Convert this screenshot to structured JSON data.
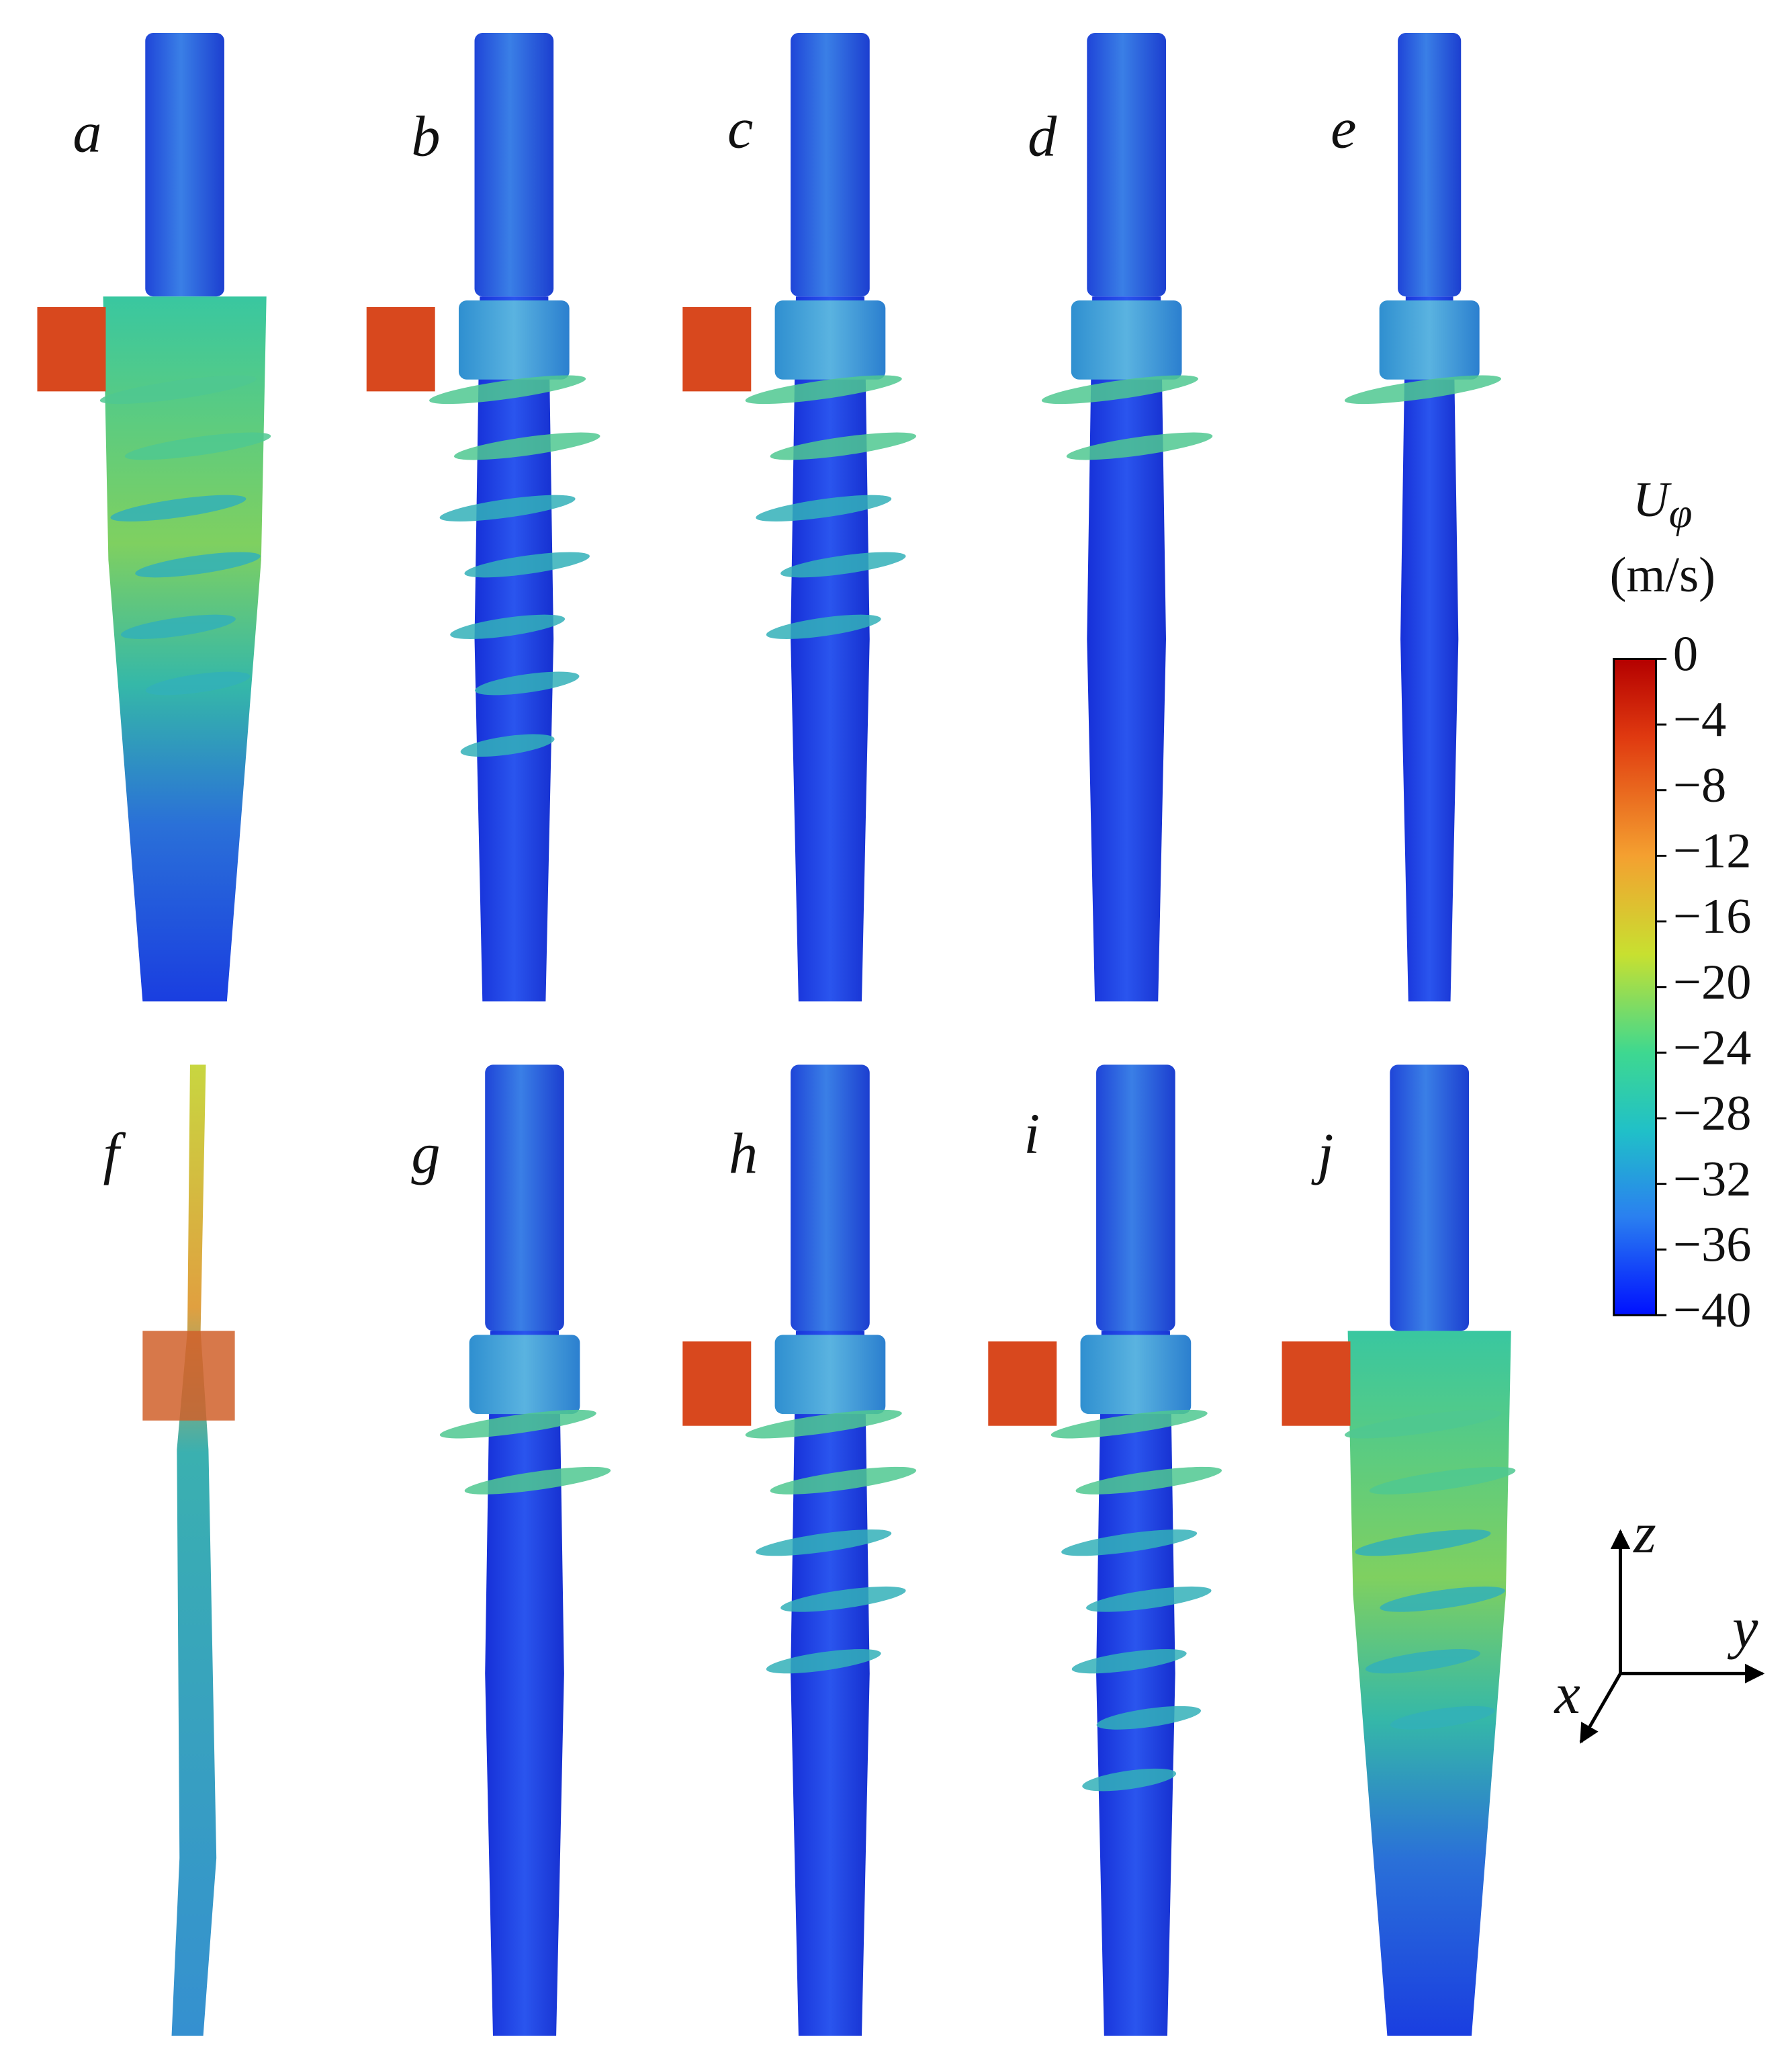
{
  "panels": [
    {
      "label": "a"
    },
    {
      "label": "b"
    },
    {
      "label": "c"
    },
    {
      "label": "d"
    },
    {
      "label": "e"
    },
    {
      "label": "f"
    },
    {
      "label": "g"
    },
    {
      "label": "h"
    },
    {
      "label": "i"
    },
    {
      "label": "j"
    }
  ],
  "colorbar": {
    "title_symbol": "U",
    "title_subscript": "φ",
    "unit": "(m/s)",
    "lim": [
      -40,
      0
    ],
    "ticks": [
      0,
      {
        "value": -4,
        "label": "−4"
      },
      {
        "value": -8,
        "label": "−8"
      },
      {
        "value": -12,
        "label": "−12"
      },
      {
        "value": -16,
        "label": "−16"
      },
      {
        "value": -20,
        "label": "−20"
      },
      {
        "value": -24,
        "label": "−24"
      },
      {
        "value": -28,
        "label": "−28"
      },
      {
        "value": -32,
        "label": "−32"
      },
      {
        "value": -36,
        "label": "−36"
      },
      {
        "value": -40,
        "label": "−40"
      }
    ]
  },
  "axes": {
    "x": "x",
    "y": "y",
    "z": "z"
  }
}
